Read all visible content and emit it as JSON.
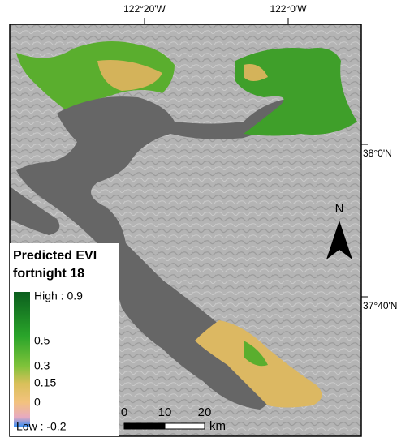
{
  "map": {
    "graticule": {
      "longitude": [
        "122°20'W",
        "122°0'W"
      ],
      "latitude": [
        "38°0'N",
        "37°40'N"
      ]
    },
    "north_arrow": "N",
    "legend": {
      "title": [
        "Predicted EVI",
        "fortnight 18"
      ],
      "labels": [
        "High : 0.9",
        "0.5",
        "0.3",
        "0.15",
        "0",
        "Low : -0.2"
      ]
    },
    "scale_bar": {
      "ticks": [
        "0",
        "10",
        "20"
      ],
      "unit": "km"
    }
  }
}
